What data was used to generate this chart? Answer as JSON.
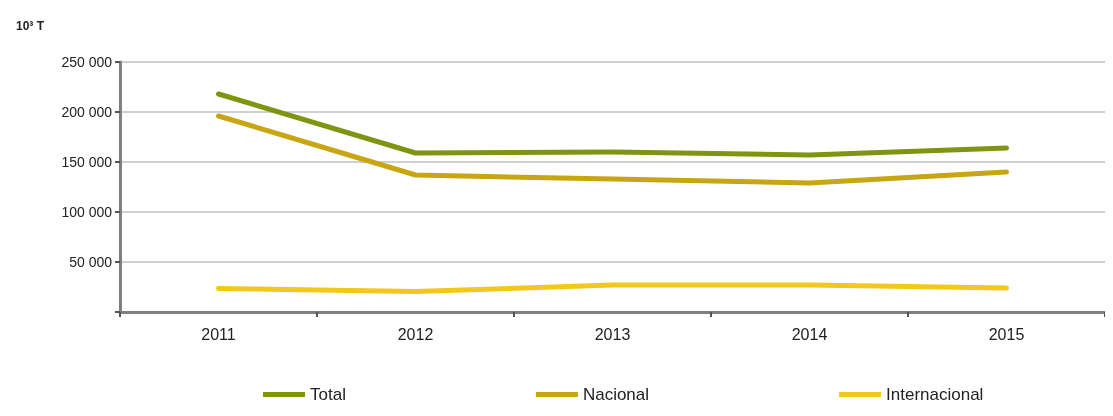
{
  "chart_data": {
    "type": "line",
    "ylabel": "10³ T",
    "categories": [
      "2011",
      "2012",
      "2013",
      "2014",
      "2015"
    ],
    "series": [
      {
        "name": "Total",
        "color": "#7f9410",
        "values": [
          218000,
          159000,
          160000,
          157000,
          164000
        ]
      },
      {
        "name": "Nacional",
        "color": "#c8a512",
        "values": [
          196000,
          137000,
          133000,
          129000,
          140000
        ]
      },
      {
        "name": "Internacional",
        "color": "#f2c81c",
        "values": [
          23500,
          20500,
          27000,
          27000,
          24000
        ]
      }
    ],
    "ylim": [
      0,
      250000
    ],
    "yticks": [
      {
        "value": 0,
        "label": null
      },
      {
        "value": 50000,
        "label": "50 000"
      },
      {
        "value": 100000,
        "label": "100 000"
      },
      {
        "value": 150000,
        "label": "150 000"
      },
      {
        "value": 200000,
        "label": "200 000"
      },
      {
        "value": 250000,
        "label": "250 000"
      }
    ],
    "grid": "y",
    "legend": "bottom",
    "marker": "none",
    "line_style": "solid"
  }
}
